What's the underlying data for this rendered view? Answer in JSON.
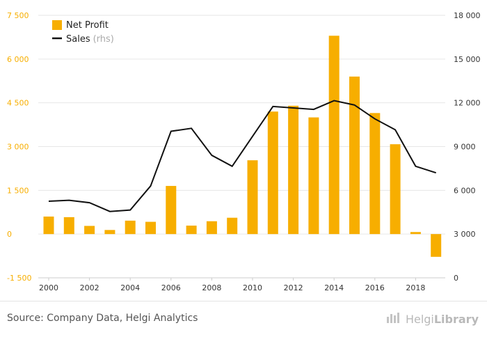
{
  "chart_data": {
    "type": "bar",
    "title": "",
    "xlabel": "",
    "ylabel": "",
    "categories": [
      "2000",
      "2001",
      "2002",
      "2003",
      "2004",
      "2005",
      "2006",
      "2007",
      "2008",
      "2009",
      "2010",
      "2011",
      "2012",
      "2013",
      "2014",
      "2015",
      "2016",
      "2017",
      "2018",
      "2019"
    ],
    "x_tick_labels": [
      "2000",
      "2002",
      "2004",
      "2006",
      "2008",
      "2010",
      "2012",
      "2014",
      "2016",
      "2018"
    ],
    "y_left": {
      "ylim": [
        -1500,
        7500
      ],
      "ticks": [
        "-1 500",
        "0",
        "1 500",
        "3 000",
        "4 500",
        "6 000",
        "7 500"
      ],
      "tick_values": [
        -1500,
        0,
        1500,
        3000,
        4500,
        6000,
        7500
      ]
    },
    "y_right": {
      "ylim": [
        0,
        18000
      ],
      "ticks": [
        "0",
        "3 000",
        "6 000",
        "9 000",
        "12 000",
        "15 000",
        "18 000"
      ],
      "tick_values": [
        0,
        3000,
        6000,
        9000,
        12000,
        15000,
        18000
      ]
    },
    "grid": true,
    "legend_position": "top-left",
    "series": [
      {
        "name": "Net Profit",
        "type": "bar",
        "axis": "left",
        "color": "#f7ae00",
        "values": [
          600,
          580,
          280,
          140,
          460,
          420,
          1650,
          290,
          440,
          560,
          2530,
          4200,
          4400,
          4000,
          6800,
          5400,
          4150,
          3080,
          70,
          -780
        ]
      },
      {
        "name": "Sales",
        "name_suffix": "(rhs)",
        "type": "line",
        "axis": "right",
        "color": "#111111",
        "values": [
          5250,
          5320,
          5150,
          4550,
          4650,
          6300,
          10050,
          10250,
          8400,
          7650,
          9700,
          11750,
          11650,
          11550,
          12150,
          11850,
          10900,
          10150,
          7650,
          7200
        ]
      }
    ]
  },
  "footer": {
    "source": "Source: Company Data, Helgi Analytics",
    "brand_light": "Helgi",
    "brand_strong": "Library"
  },
  "colors": {
    "bar": "#f7ae00",
    "line": "#111111",
    "grid": "#e6e6e6",
    "tick_text": "#f7ae00",
    "axis_text": "#333333"
  },
  "icons": {
    "logo": "helgi-building-icon"
  }
}
